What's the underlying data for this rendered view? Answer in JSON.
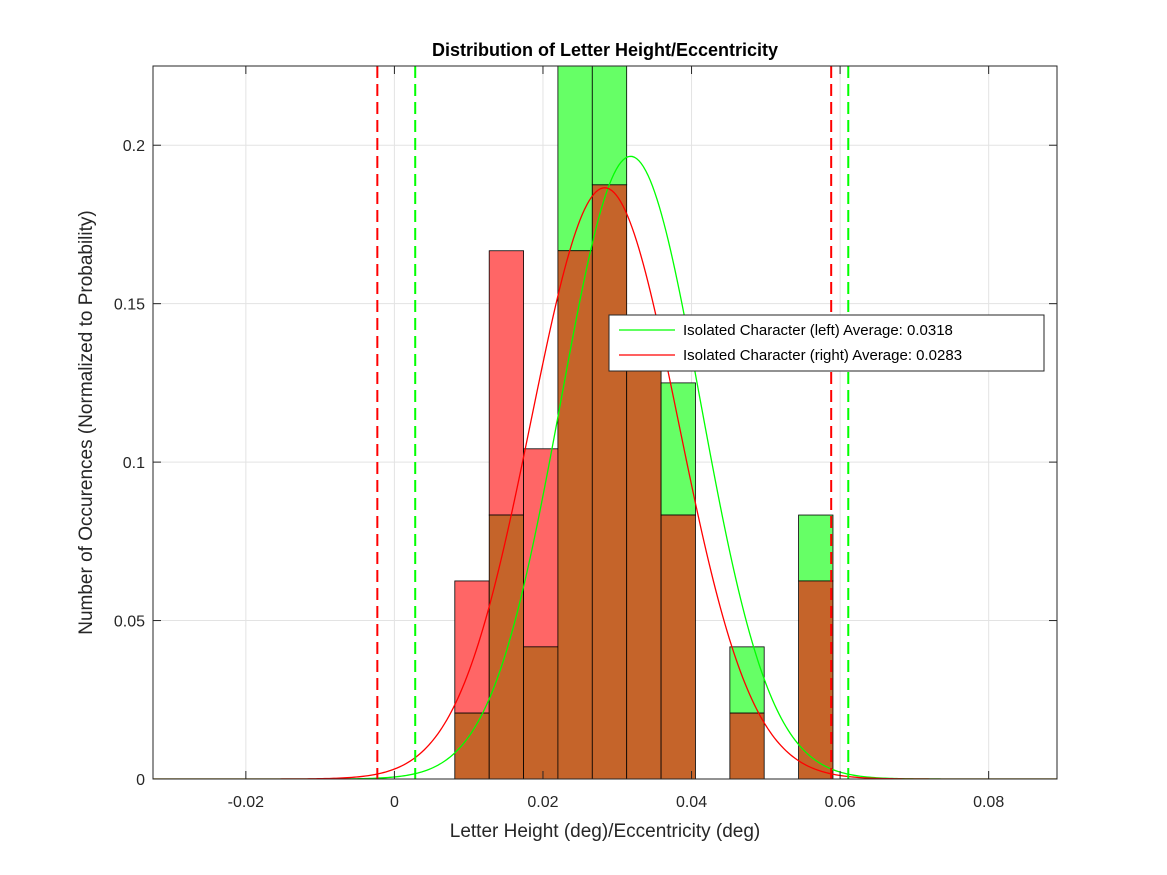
{
  "chart_data": {
    "type": "bar",
    "title": "Distribution of Letter Height/Eccentricity",
    "xlabel": "Letter Height (deg)/Eccentricity (deg)",
    "ylabel": "Number of Occurences (Normalized to Probability)",
    "xlim": [
      -0.0325,
      0.0892
    ],
    "ylim": [
      0,
      0.225
    ],
    "xticks": [
      -0.02,
      0,
      0.02,
      0.04,
      0.06,
      0.08
    ],
    "xtick_labels": [
      "-0.02",
      "0",
      "0.02",
      "0.04",
      "0.06",
      "0.08"
    ],
    "yticks": [
      0,
      0.05,
      0.1,
      0.15,
      0.2
    ],
    "ytick_labels": [
      "0",
      "0.05",
      "0.1",
      "0.15",
      "0.2"
    ],
    "grid": true,
    "legend_position": "right",
    "bin_edges": [
      0.00813,
      0.01276,
      0.01739,
      0.02201,
      0.02664,
      0.03127,
      0.0359,
      0.04053,
      0.04516,
      0.04978,
      0.05441,
      0.05904,
      0.06367
    ],
    "series": [
      {
        "name": "Isolated Character (left) Average: 0.0318",
        "color": "#00ff00",
        "bar_color": "#66ff66",
        "values": [
          0.0208,
          0.0833,
          0.0417,
          0.25,
          0.25,
          0.1458,
          0.125,
          0.0,
          0.0417,
          0.0,
          0.0833,
          0.0
        ],
        "fit": {
          "mean": 0.0318,
          "sigma": 0.0094
        },
        "bounds": [
          0.0028,
          0.0611
        ]
      },
      {
        "name": "Isolated Character (right) Average: 0.0283",
        "color": "#ff0000",
        "bar_color": "#ff6666",
        "values": [
          0.0625,
          0.1667,
          0.1042,
          0.1667,
          0.1875,
          0.1458,
          0.0833,
          0.0,
          0.0208,
          0.0,
          0.0625,
          0.0
        ],
        "fit": {
          "mean": 0.0283,
          "sigma": 0.0099
        },
        "bounds": [
          -0.0023,
          0.0588
        ]
      }
    ],
    "overlap_color": "#c5642a"
  }
}
